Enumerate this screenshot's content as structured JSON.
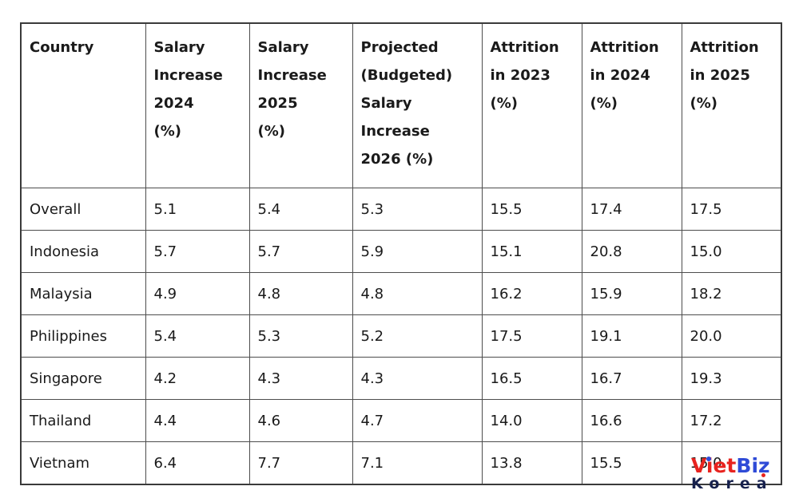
{
  "table": {
    "columns": [
      {
        "key": "country",
        "label": "Country"
      },
      {
        "key": "salary_2024",
        "label": "Salary\nIncrease\n2024\n(%)"
      },
      {
        "key": "salary_2025",
        "label": "Salary\nIncrease\n2025\n(%)"
      },
      {
        "key": "salary_2026",
        "label": "Projected\n(Budgeted)\nSalary\nIncrease\n2026 (%)"
      },
      {
        "key": "attrition_2023",
        "label": "Attrition\nin 2023\n(%)"
      },
      {
        "key": "attrition_2024",
        "label": "Attrition\nin 2024\n(%)"
      },
      {
        "key": "attrition_2025",
        "label": "Attrition\nin 2025\n(%)"
      }
    ],
    "rows": [
      [
        "Overall",
        "5.1",
        "5.4",
        "5.3",
        "15.5",
        "17.4",
        "17.5"
      ],
      [
        "Indonesia",
        "5.7",
        "5.7",
        "5.9",
        "15.1",
        "20.8",
        "15.0"
      ],
      [
        "Malaysia",
        "4.9",
        "4.8",
        "4.8",
        "16.2",
        "15.9",
        "18.2"
      ],
      [
        "Philippines",
        "5.4",
        "5.3",
        "5.2",
        "17.5",
        "19.1",
        "20.0"
      ],
      [
        "Singapore",
        "4.2",
        "4.3",
        "4.3",
        "16.5",
        "16.7",
        "19.3"
      ],
      [
        "Thailand",
        "4.4",
        "4.6",
        "4.7",
        "14.0",
        "16.6",
        "17.2"
      ],
      [
        "Vietnam",
        "6.4",
        "7.7",
        "7.1",
        "13.8",
        "15.5",
        "15.0"
      ]
    ]
  },
  "logo": {
    "part1": "Viet",
    "part2": "Biz",
    "line2": "Korea",
    "colors": {
      "part1": "#e8231f",
      "part2": "#2f4bd7",
      "line2": "#17214d",
      "accent_red": "#e8231f",
      "accent_blue": "#2f4bd7"
    }
  },
  "chart_data": {
    "type": "table",
    "columns": [
      "Country",
      "Salary Increase 2024 (%)",
      "Salary Increase 2025 (%)",
      "Projected (Budgeted) Salary Increase 2026 (%)",
      "Attrition in 2023 (%)",
      "Attrition in 2024 (%)",
      "Attrition in 2025 (%)"
    ],
    "rows": [
      [
        "Overall",
        5.1,
        5.4,
        5.3,
        15.5,
        17.4,
        17.5
      ],
      [
        "Indonesia",
        5.7,
        5.7,
        5.9,
        15.1,
        20.8,
        15.0
      ],
      [
        "Malaysia",
        4.9,
        4.8,
        4.8,
        16.2,
        15.9,
        18.2
      ],
      [
        "Philippines",
        5.4,
        5.3,
        5.2,
        17.5,
        19.1,
        20.0
      ],
      [
        "Singapore",
        4.2,
        4.3,
        4.3,
        16.5,
        16.7,
        19.3
      ],
      [
        "Thailand",
        4.4,
        4.6,
        4.7,
        14.0,
        16.6,
        17.2
      ],
      [
        "Vietnam",
        6.4,
        7.7,
        7.1,
        13.8,
        15.5,
        15.0
      ]
    ]
  }
}
